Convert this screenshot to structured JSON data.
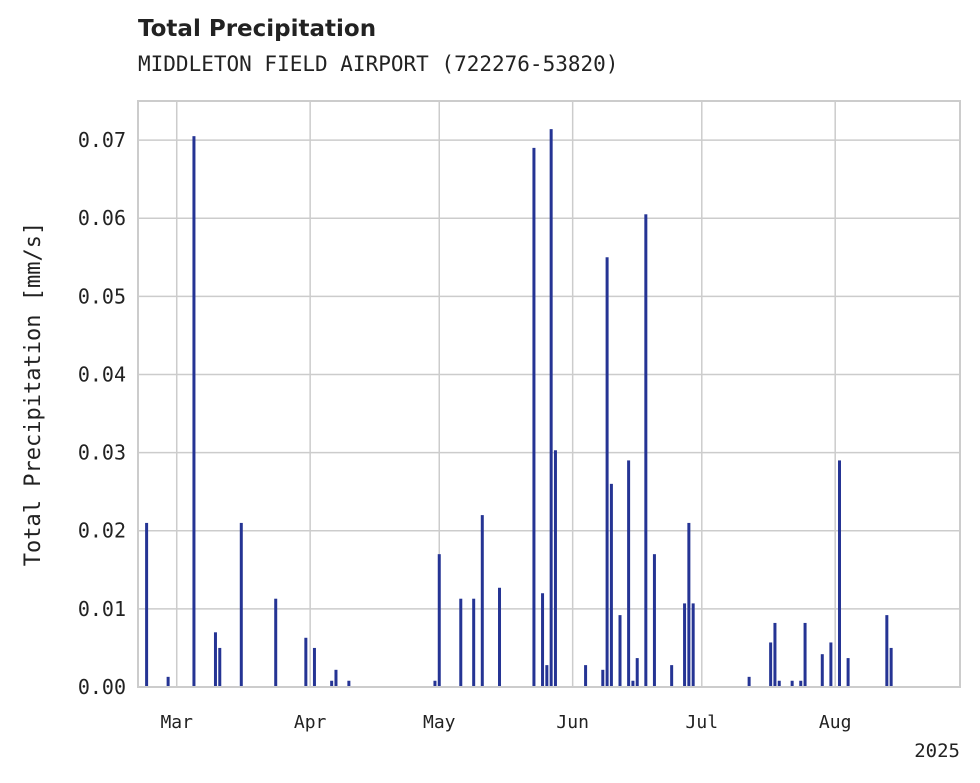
{
  "chart_data": {
    "type": "bar",
    "title": "Total Precipitation",
    "subtitle": "MIDDLETON FIELD AIRPORT (722276-53820)",
    "xlabel": "",
    "ylabel": "Total Precipitation [mm/s]",
    "x_range": [
      "2025-02-20",
      "2025-08-30"
    ],
    "ylim": [
      0,
      0.075
    ],
    "y_ticks": [
      "0.00",
      "0.01",
      "0.02",
      "0.03",
      "0.04",
      "0.05",
      "0.06",
      "0.07"
    ],
    "y_tick_values": [
      0,
      0.01,
      0.02,
      0.03,
      0.04,
      0.05,
      0.06,
      0.07
    ],
    "x_ticks": [
      {
        "date": "2025-03-01",
        "label": "Mar"
      },
      {
        "date": "2025-04-01",
        "label": "Apr"
      },
      {
        "date": "2025-05-01",
        "label": "May"
      },
      {
        "date": "2025-06-01",
        "label": "Jun"
      },
      {
        "date": "2025-07-01",
        "label": "Jul"
      },
      {
        "date": "2025-08-01",
        "label": "Aug"
      }
    ],
    "x_offset_label": "2025",
    "grid": true,
    "legend": "none",
    "color": "#253494",
    "series": [
      {
        "x": [
          "2025-02-22",
          "2025-02-27",
          "2025-03-05",
          "2025-03-10",
          "2025-03-11",
          "2025-03-16",
          "2025-03-24",
          "2025-03-31",
          "2025-04-02",
          "2025-04-06",
          "2025-04-07",
          "2025-04-10",
          "2025-04-30",
          "2025-05-01",
          "2025-05-06",
          "2025-05-09",
          "2025-05-11",
          "2025-05-15",
          "2025-05-23",
          "2025-05-25",
          "2025-05-26",
          "2025-05-27",
          "2025-05-28",
          "2025-06-04",
          "2025-06-08",
          "2025-06-09",
          "2025-06-10",
          "2025-06-12",
          "2025-06-14",
          "2025-06-15",
          "2025-06-16",
          "2025-06-18",
          "2025-06-20",
          "2025-06-24",
          "2025-06-27",
          "2025-06-28",
          "2025-06-29",
          "2025-07-12",
          "2025-07-17",
          "2025-07-18",
          "2025-07-19",
          "2025-07-22",
          "2025-07-24",
          "2025-07-25",
          "2025-07-29",
          "2025-07-31",
          "2025-08-02",
          "2025-08-04",
          "2025-08-13",
          "2025-08-14"
        ],
        "values": [
          0.021,
          0.0013,
          0.0705,
          0.007,
          0.005,
          0.021,
          0.0113,
          0.0063,
          0.005,
          0.0008,
          0.0022,
          0.0008,
          0.0008,
          0.017,
          0.0113,
          0.0113,
          0.022,
          0.0127,
          0.069,
          0.012,
          0.0028,
          0.0714,
          0.0303,
          0.0028,
          0.0022,
          0.055,
          0.026,
          0.0092,
          0.029,
          0.0008,
          0.0037,
          0.0605,
          0.017,
          0.0028,
          0.0107,
          0.021,
          0.0107,
          0.0013,
          0.0057,
          0.0082,
          0.0008,
          0.0008,
          0.0008,
          0.0082,
          0.0042,
          0.0057,
          0.029,
          0.0037,
          0.0092,
          0.005
        ]
      }
    ]
  }
}
